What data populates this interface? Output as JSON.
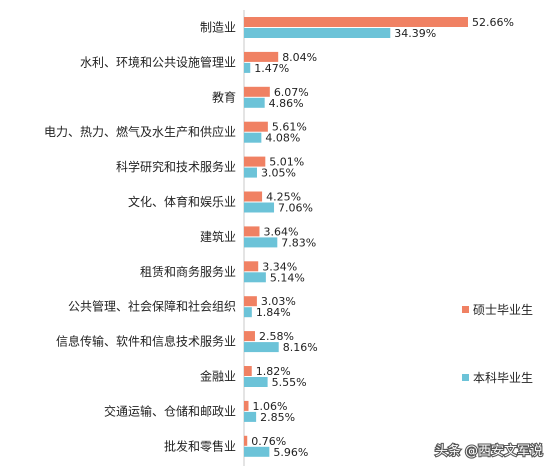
{
  "chart_data": {
    "type": "bar",
    "orientation": "horizontal",
    "categories": [
      "制造业",
      "水利、环境和公共设施管理业",
      "教育",
      "电力、热力、燃气及水生产和供应业",
      "科学研究和技术服务业",
      "文化、体育和娱乐业",
      "建筑业",
      "租赁和商务服务业",
      "公共管理、社会保障和社会组织",
      "信息传输、软件和信息技术服务业",
      "金融业",
      "交通运输、仓储和邮政业",
      "批发和零售业"
    ],
    "series": [
      {
        "name": "硕士毕业生",
        "color": "#F08163",
        "values": [
          52.66,
          8.04,
          6.07,
          5.61,
          5.01,
          4.25,
          3.64,
          3.34,
          3.03,
          2.58,
          1.82,
          1.06,
          0.76
        ],
        "labels": [
          "52.66%",
          "8.04%",
          "6.07%",
          "5.61%",
          "5.01%",
          "4.25%",
          "3.64%",
          "3.34%",
          "3.03%",
          "2.58%",
          "1.82%",
          "1.06%",
          "0.76%"
        ]
      },
      {
        "name": "本科毕业生",
        "color": "#6CC3D8",
        "values": [
          34.39,
          1.47,
          4.86,
          4.08,
          3.05,
          7.06,
          7.83,
          5.14,
          1.84,
          8.16,
          5.55,
          2.85,
          5.96
        ],
        "labels": [
          "34.39%",
          "1.47%",
          "4.86%",
          "4.08%",
          "3.05%",
          "7.06%",
          "7.83%",
          "5.14%",
          "1.84%",
          "8.16%",
          "5.55%",
          "2.85%",
          "5.96%"
        ]
      }
    ],
    "unit": "%",
    "legend_placement": "right",
    "grid": false
  },
  "watermark": "头条 @西安文军说"
}
